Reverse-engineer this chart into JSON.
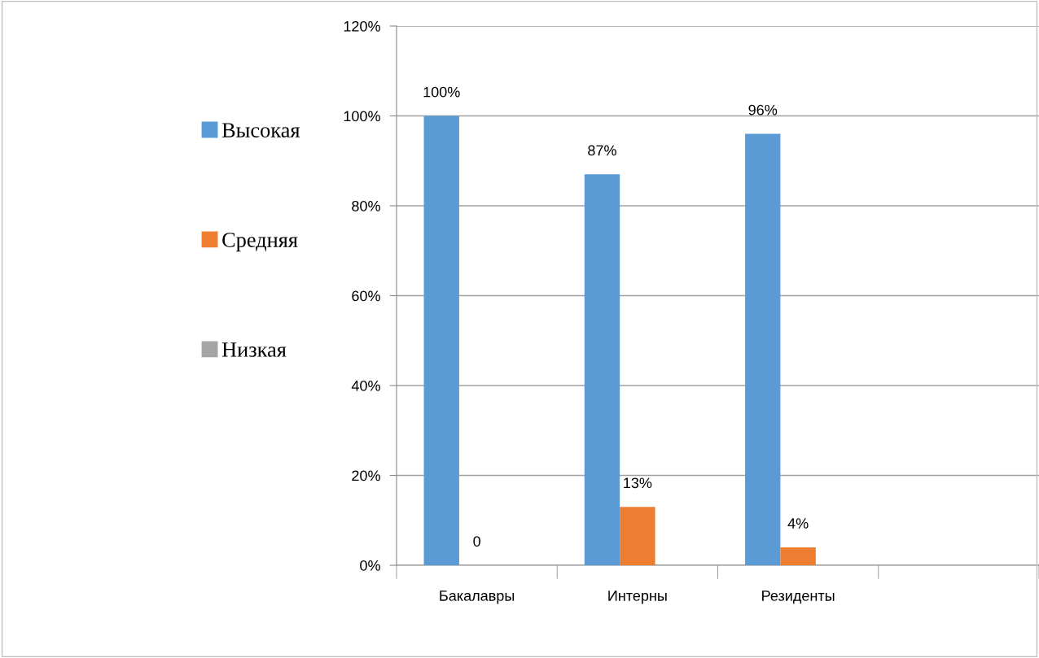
{
  "chart_data": {
    "type": "bar",
    "categories": [
      "Бакалавры",
      "Интерны",
      "Резиденты",
      null
    ],
    "series": [
      {
        "name": "Высокая",
        "color": "#5b9bd5",
        "values": [
          100,
          87,
          96,
          null
        ],
        "value_labels": [
          "100%",
          "87%",
          "96%",
          null
        ]
      },
      {
        "name": "Средняя",
        "color": "#ed7d31",
        "values": [
          0,
          13,
          4,
          null
        ],
        "value_labels": [
          "0",
          "13%",
          "4%",
          null
        ]
      },
      {
        "name": "Низкая",
        "color": "#a5a5a5",
        "values": [
          null,
          null,
          null,
          null
        ],
        "value_labels": [
          null,
          null,
          null,
          null
        ]
      }
    ],
    "ylim": [
      0,
      120
    ],
    "yticks": [
      {
        "value": 0,
        "label": "0%"
      },
      {
        "value": 20,
        "label": "20%"
      },
      {
        "value": 40,
        "label": "40%"
      },
      {
        "value": 60,
        "label": "60%"
      },
      {
        "value": 80,
        "label": "80%"
      },
      {
        "value": 100,
        "label": "100%"
      },
      {
        "value": 120,
        "label": "120%"
      }
    ],
    "grid": "y",
    "legend": "left"
  }
}
